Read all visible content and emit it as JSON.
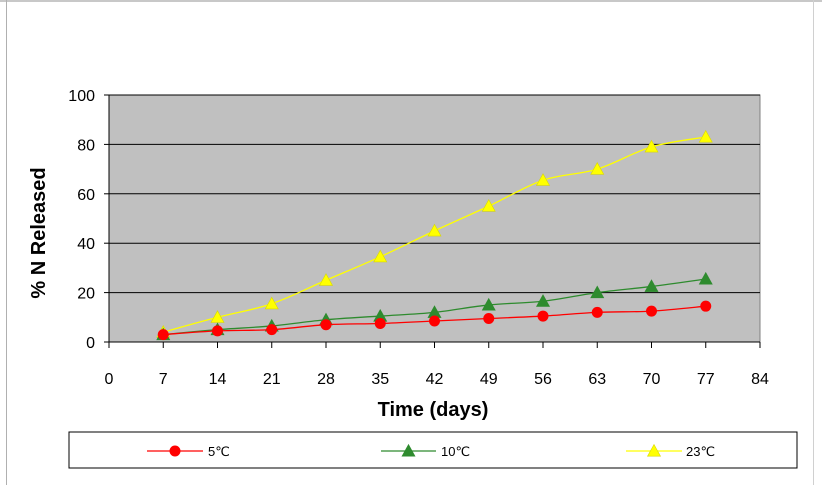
{
  "chart_data": {
    "type": "line",
    "title": "",
    "xlabel": "Time (days)",
    "ylabel": "% N Released",
    "xlim": [
      0,
      84
    ],
    "ylim": [
      0,
      100
    ],
    "x_ticks": [
      "0",
      "7",
      "14",
      "21",
      "28",
      "35",
      "42",
      "49",
      "56",
      "63",
      "70",
      "77",
      "84"
    ],
    "y_ticks": [
      "0",
      "20",
      "40",
      "60",
      "80",
      "100"
    ],
    "grid": "horizontal",
    "legend_position": "bottom",
    "plot_background": "#c0c0c0",
    "x": [
      7,
      14,
      21,
      28,
      35,
      42,
      49,
      56,
      63,
      70,
      77
    ],
    "series": [
      {
        "name": "5℃",
        "color": "#ff0000",
        "marker": "circle",
        "values": [
          3,
          4.5,
          5,
          7,
          7.5,
          8.5,
          9.5,
          10.5,
          12,
          12.5,
          14.5
        ]
      },
      {
        "name": "10℃",
        "color": "#2e8b2e",
        "marker": "triangle",
        "values": [
          3,
          5,
          6.5,
          9,
          10.5,
          12,
          15,
          16.5,
          20,
          22.5,
          25.5
        ]
      },
      {
        "name": "23℃",
        "color": "#ffff00",
        "marker": "triangle",
        "values": [
          4,
          10,
          15.5,
          25,
          34.5,
          45,
          55,
          65.5,
          70,
          79,
          83
        ]
      }
    ]
  }
}
